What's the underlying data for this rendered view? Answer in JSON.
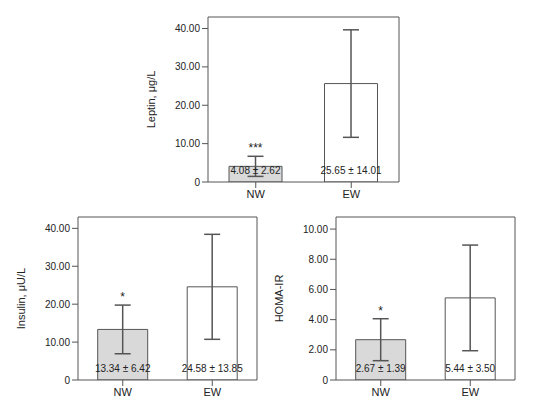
{
  "chart_data": [
    {
      "type": "bar",
      "y_label": "Leptin, μg/L",
      "categories": [
        "NW",
        "EW"
      ],
      "values": [
        4.08,
        25.65
      ],
      "errors": [
        2.62,
        14.01
      ],
      "value_labels": [
        "4.08 ± 2.62",
        "25.65 ± 14.01"
      ],
      "annotations": [
        {
          "category": "NW",
          "text": "***"
        }
      ],
      "colors": [
        "#d9d9d9",
        "#ffffff"
      ],
      "ylim": [
        0,
        43
      ],
      "yticks": [
        0,
        {
          "value": 10,
          "label": "10.00"
        },
        {
          "value": 20,
          "label": "20.00"
        },
        {
          "value": 30,
          "label": "30.00"
        },
        {
          "value": 40,
          "label": "40.00"
        }
      ],
      "grid": false
    },
    {
      "type": "bar",
      "y_label": "Insulin, μU/L",
      "categories": [
        "NW",
        "EW"
      ],
      "values": [
        13.34,
        24.58
      ],
      "errors": [
        6.42,
        13.85
      ],
      "value_labels": [
        "13.34 ± 6.42",
        "24.58 ± 13.85"
      ],
      "annotations": [
        {
          "category": "NW",
          "text": "*"
        }
      ],
      "colors": [
        "#d9d9d9",
        "#ffffff"
      ],
      "ylim": [
        0,
        43
      ],
      "yticks": [
        0,
        {
          "value": 10,
          "label": "10.00"
        },
        {
          "value": 20,
          "label": "20.00"
        },
        {
          "value": 30,
          "label": "30.00"
        },
        {
          "value": 40,
          "label": "40.00"
        }
      ],
      "grid": false
    },
    {
      "type": "bar",
      "y_label": "HOMA-IR",
      "categories": [
        "NW",
        "EW"
      ],
      "values": [
        2.67,
        5.44
      ],
      "errors": [
        1.39,
        3.5
      ],
      "value_labels": [
        "2.67 ± 1.39",
        "5.44 ± 3.50"
      ],
      "annotations": [
        {
          "category": "NW",
          "text": "*"
        }
      ],
      "colors": [
        "#d9d9d9",
        "#ffffff"
      ],
      "ylim": [
        0,
        10.8
      ],
      "yticks": [
        0,
        {
          "value": 2,
          "label": "2.00"
        },
        {
          "value": 4,
          "label": "4.00"
        },
        {
          "value": 6,
          "label": "6.00"
        },
        {
          "value": 8,
          "label": "8.00"
        },
        {
          "value": 10,
          "label": "10.00"
        }
      ],
      "grid": false
    }
  ]
}
